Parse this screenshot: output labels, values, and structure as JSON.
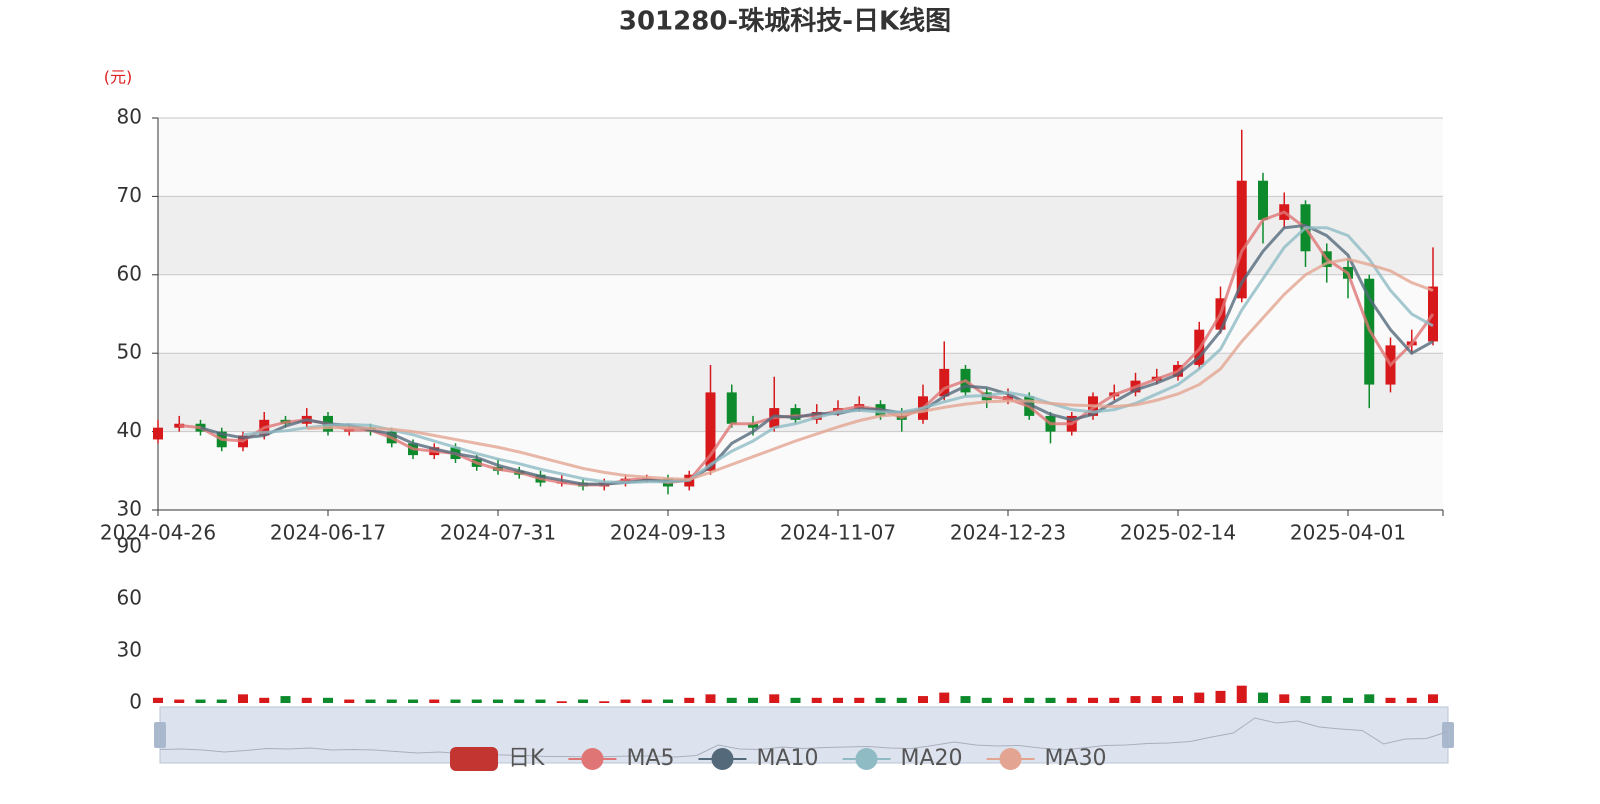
{
  "chart_data": {
    "type": "candlestick",
    "title": "301280-珠城科技-日K线图",
    "y_unit": "(元)",
    "categories": [
      "2024-04-26",
      null,
      null,
      null,
      null,
      null,
      null,
      null,
      "2024-06-17",
      null,
      null,
      null,
      null,
      null,
      null,
      null,
      "2024-07-31",
      null,
      null,
      null,
      null,
      null,
      null,
      null,
      "2024-09-13",
      null,
      null,
      null,
      null,
      null,
      null,
      null,
      "2024-11-07",
      null,
      null,
      null,
      null,
      null,
      null,
      null,
      "2024-12-23",
      null,
      null,
      null,
      null,
      null,
      null,
      null,
      "2025-02-14",
      null,
      null,
      null,
      null,
      null,
      null,
      null,
      "2025-04-01",
      null,
      null,
      null,
      null
    ],
    "ylim": [
      30,
      80
    ],
    "yticks": [
      30,
      40,
      50,
      60,
      70,
      80
    ],
    "grid": true,
    "series": [
      {
        "name": "日K",
        "color": "#c23531",
        "up_color": "#d7191c",
        "down_color": "#0c8a2c",
        "open": [
          39,
          40.5,
          41,
          40,
          38,
          39.5,
          41.5,
          41,
          42,
          40,
          40.5,
          40,
          38.5,
          37,
          38,
          36.5,
          35.5,
          35,
          34.5,
          33.5,
          33.5,
          33,
          33.5,
          34,
          34,
          33,
          35,
          45,
          41,
          40.5,
          43,
          41.5,
          42.5,
          43,
          43.5,
          42,
          41.5,
          44.5,
          48,
          45,
          44,
          44.5,
          42,
          40,
          42,
          44.5,
          45,
          46.5,
          47,
          48.5,
          53,
          57,
          72,
          67,
          69,
          63,
          61,
          59.5,
          46,
          51,
          51.5
        ],
        "close": [
          40.5,
          41,
          40,
          38,
          39.5,
          41.5,
          41,
          42,
          40,
          40.5,
          40,
          38.5,
          37,
          38,
          36.5,
          35.5,
          35,
          34.5,
          33.5,
          33.5,
          33,
          33.5,
          34,
          34,
          33,
          34.5,
          45,
          41,
          40.5,
          43,
          41.5,
          42.5,
          43,
          43.5,
          42,
          41.5,
          44.5,
          48,
          45,
          44,
          44.5,
          42,
          40,
          42,
          44.5,
          45,
          46.5,
          47,
          48.5,
          53,
          57,
          72,
          67,
          69,
          63,
          61,
          59.5,
          46,
          51,
          51.5,
          58.5
        ],
        "high": [
          41.5,
          42,
          41.5,
          40.5,
          40,
          42.5,
          42,
          43,
          42.5,
          41,
          41,
          40.5,
          39,
          38.5,
          38.5,
          37,
          36.5,
          35.5,
          35,
          34.5,
          34,
          34,
          34.5,
          34.5,
          34.5,
          35,
          48.5,
          46,
          42,
          47,
          43.5,
          43.5,
          44,
          44.5,
          44,
          43,
          46,
          51.5,
          48.5,
          45.5,
          45.5,
          45,
          42.5,
          42.5,
          45,
          46,
          47.5,
          48,
          49,
          54,
          58.5,
          78.5,
          73,
          70.5,
          69.5,
          64,
          62,
          60,
          52,
          53,
          63.5
        ],
        "low": [
          38.5,
          40,
          39.5,
          37.5,
          37.5,
          39,
          40.5,
          40.5,
          39.5,
          39.5,
          39.5,
          38,
          36.5,
          36.5,
          36,
          35,
          34.5,
          34,
          33,
          33,
          32.5,
          32.5,
          33,
          33.5,
          32,
          32.5,
          34.5,
          40.5,
          39.5,
          40,
          41,
          41,
          42,
          42.5,
          41.5,
          40,
          41,
          44,
          44.5,
          43,
          43.5,
          41.5,
          38.5,
          39.5,
          41.5,
          44,
          44.5,
          46,
          46.5,
          48,
          52.5,
          56.5,
          64,
          66,
          61,
          59,
          57,
          43,
          45,
          50,
          51
        ]
      },
      {
        "name": "MA5",
        "color": "#e07575",
        "values": [
          null,
          40.8,
          40.5,
          39,
          38.8,
          40.5,
          41.2,
          41.5,
          41,
          40.2,
          40.2,
          39.2,
          37.8,
          37.5,
          37.2,
          36,
          35.2,
          34.8,
          34,
          33.5,
          33.2,
          33.2,
          33.8,
          34,
          33.5,
          33.8,
          37,
          41,
          41,
          41.8,
          42,
          42,
          42.7,
          43.2,
          42.8,
          41.8,
          43,
          45.5,
          46.5,
          44.5,
          44.2,
          43.2,
          41,
          41,
          43,
          44.7,
          45.7,
          46.7,
          47.7,
          50.5,
          55,
          63,
          67,
          68,
          66,
          62,
          60.2,
          53,
          48.5,
          51.2,
          55
        ]
      },
      {
        "name": "MA10",
        "color": "#54697a",
        "values": [
          null,
          null,
          40.5,
          39.7,
          39.2,
          39.5,
          40.7,
          41.5,
          41,
          40.8,
          40.2,
          39.7,
          38.5,
          37.8,
          37.2,
          36.7,
          35.7,
          35,
          34.3,
          33.8,
          33.3,
          33.3,
          33.5,
          33.8,
          33.7,
          33.8,
          35.5,
          38.5,
          40,
          42,
          41.8,
          42.3,
          42.3,
          42.9,
          42.8,
          42.4,
          42.7,
          44.5,
          45.8,
          45.6,
          44.8,
          43.5,
          42.2,
          41.5,
          42.2,
          43.8,
          45.3,
          46.2,
          47.3,
          49.5,
          52.8,
          59,
          63,
          66,
          66.3,
          65,
          62.5,
          57,
          53,
          50,
          51.5
        ]
      },
      {
        "name": "MA20",
        "color": "#8fbcc4",
        "values": [
          null,
          null,
          null,
          null,
          39.6,
          39.9,
          40.1,
          40.5,
          40.8,
          40.9,
          40.8,
          40.2,
          39.6,
          38.8,
          38,
          37.2,
          36.5,
          35.9,
          35.2,
          34.6,
          34,
          33.6,
          33.5,
          33.6,
          33.6,
          33.8,
          35.8,
          37.5,
          38.8,
          40.5,
          41,
          41.8,
          42.5,
          42.7,
          42.5,
          42.5,
          43,
          43.8,
          44.5,
          44.6,
          45,
          44.5,
          43.6,
          42.8,
          42.5,
          42.8,
          43.6,
          44.8,
          46,
          48,
          50.5,
          55.5,
          59.5,
          63.5,
          66,
          66,
          65,
          62,
          58,
          55,
          53.5
        ]
      },
      {
        "name": "MA30",
        "color": "#e3a591",
        "values": [
          null,
          null,
          null,
          null,
          null,
          null,
          null,
          40.4,
          40.5,
          40.5,
          40.4,
          40.3,
          40,
          39.5,
          39,
          38.5,
          38,
          37.4,
          36.7,
          36,
          35.3,
          34.8,
          34.4,
          34.2,
          34,
          33.9,
          34.8,
          35.8,
          36.8,
          37.8,
          38.8,
          39.7,
          40.6,
          41.4,
          42,
          42.2,
          42.6,
          43.1,
          43.5,
          43.8,
          43.9,
          43.9,
          43.6,
          43.4,
          43.3,
          43.2,
          43.4,
          44,
          44.8,
          46,
          48,
          51.5,
          54.5,
          57.5,
          60,
          61.5,
          62,
          61.3,
          60.5,
          59,
          58
        ]
      }
    ],
    "volume": {
      "ylim": [
        0,
        90
      ],
      "yticks": [
        0,
        30,
        60,
        90
      ],
      "values": [
        3,
        2,
        2,
        2,
        5,
        3,
        4,
        3,
        3,
        2,
        2,
        2,
        2,
        2,
        2,
        2,
        2,
        2,
        2,
        1,
        2,
        1,
        2,
        2,
        2,
        3,
        5,
        3,
        3,
        5,
        3,
        3,
        3,
        3,
        3,
        3,
        4,
        6,
        4,
        3,
        3,
        3,
        3,
        3,
        3,
        3,
        4,
        4,
        4,
        6,
        7,
        10,
        6,
        5,
        4,
        4,
        3,
        5,
        3,
        3,
        5
      ]
    }
  }
}
